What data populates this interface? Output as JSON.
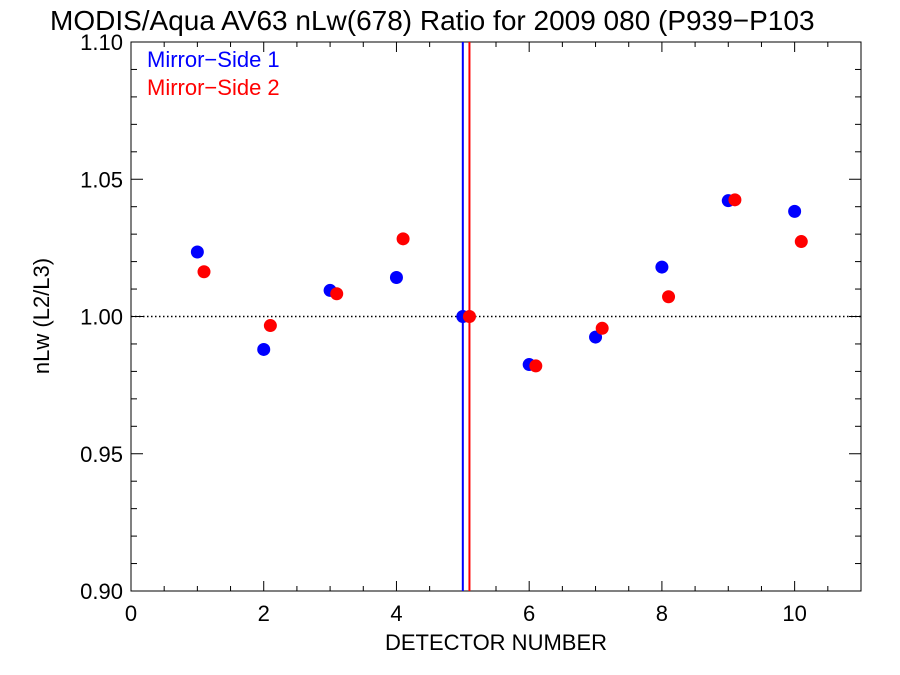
{
  "chart_data": {
    "type": "scatter",
    "title": "MODIS/Aqua AV63 nLw(678) Ratio for 2009 080 (P939−P103",
    "xlabel": "DETECTOR NUMBER",
    "ylabel": "nLw (L2/L3)",
    "xlim": [
      0,
      11
    ],
    "ylim": [
      0.9,
      1.1
    ],
    "x_ticks": [
      0,
      2,
      4,
      6,
      8,
      10
    ],
    "x_tick_labels": [
      "0",
      "2",
      "4",
      "6",
      "8",
      "10"
    ],
    "y_ticks": [
      0.9,
      0.95,
      1.0,
      1.05,
      1.1
    ],
    "y_tick_labels": [
      "0.90",
      "0.95",
      "1.00",
      "1.05",
      "1.10"
    ],
    "reference_line_y": 1.0,
    "legend_position": "top-left",
    "series": [
      {
        "name": "Mirror−Side 1",
        "color": "#0000ff",
        "x": [
          1,
          2,
          3,
          4,
          5,
          6,
          7,
          8,
          9,
          10
        ],
        "y": [
          1.0235,
          0.988,
          1.0095,
          1.0142,
          1.0,
          0.9825,
          0.9925,
          1.018,
          1.0422,
          1.0383
        ],
        "vertical_line_x": 5.0
      },
      {
        "name": "Mirror−Side 2",
        "color": "#ff0000",
        "x": [
          1.1,
          2.1,
          3.1,
          4.1,
          5.1,
          6.1,
          7.1,
          8.1,
          9.1,
          10.1
        ],
        "y": [
          1.0163,
          0.9967,
          1.0083,
          1.0283,
          1.0,
          0.982,
          0.9957,
          1.0072,
          1.0425,
          1.0273
        ],
        "vertical_line_x": 5.1
      }
    ]
  }
}
